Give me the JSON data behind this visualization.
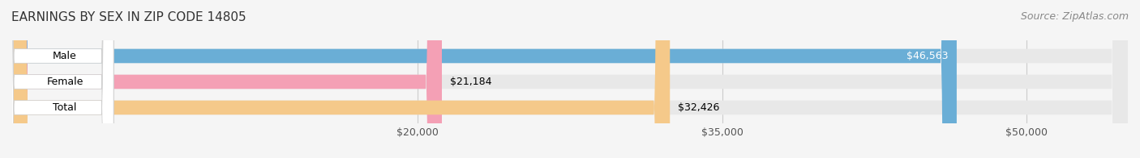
{
  "title": "EARNINGS BY SEX IN ZIP CODE 14805",
  "source": "Source: ZipAtlas.com",
  "categories": [
    "Male",
    "Female",
    "Total"
  ],
  "values": [
    46563,
    21184,
    32426
  ],
  "bar_colors": [
    "#6aaed6",
    "#f4a0b5",
    "#f5c98a"
  ],
  "label_colors": [
    "white",
    "black",
    "black"
  ],
  "label_inside": [
    true,
    false,
    false
  ],
  "bar_labels": [
    "$46,563",
    "$21,184",
    "$32,426"
  ],
  "x_min": 0,
  "x_max": 55000,
  "x_ticks": [
    20000,
    35000,
    50000
  ],
  "x_tick_labels": [
    "$20,000",
    "$35,000",
    "$50,000"
  ],
  "background_color": "#f5f5f5",
  "bar_background_color": "#e8e8e8",
  "title_fontsize": 11,
  "source_fontsize": 9,
  "label_fontsize": 9,
  "tick_fontsize": 9,
  "category_fontsize": 9,
  "bar_height": 0.55,
  "figsize": [
    14.06,
    1.96
  ],
  "dpi": 100
}
